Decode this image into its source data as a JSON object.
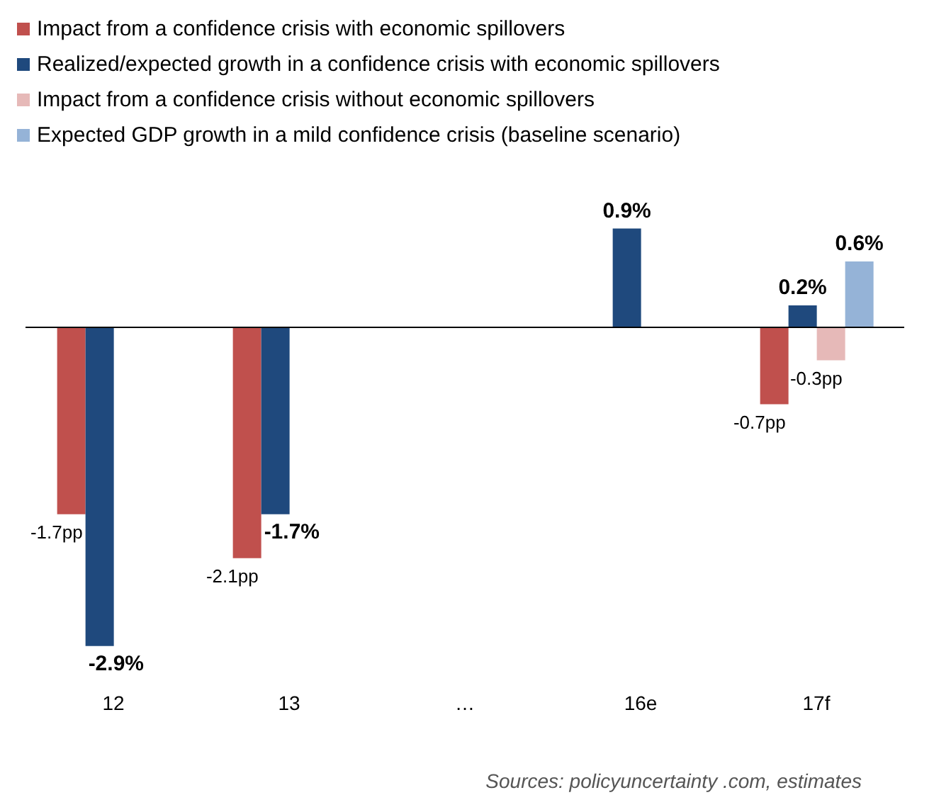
{
  "chart_data": {
    "type": "bar",
    "categories": [
      "12",
      "13",
      "…",
      "16e",
      "17f"
    ],
    "series": [
      {
        "name": "Impact from a confidence crisis with economic spillovers",
        "color": "#c0504d",
        "values": [
          -1.7,
          -2.1,
          null,
          null,
          -0.7
        ],
        "value_labels": [
          "-1.7pp",
          "-2.1pp",
          null,
          null,
          "-0.7pp"
        ]
      },
      {
        "name": "Realized/expected growth in a confidence crisis with economic spillovers",
        "color": "#1f497d",
        "values": [
          -2.9,
          -1.7,
          null,
          0.9,
          0.2
        ],
        "value_labels": [
          "-2.9%",
          "-1.7%",
          null,
          "0.9%",
          "0.2%"
        ]
      },
      {
        "name": "Impact from a confidence crisis without economic spillovers",
        "color": "#e6b9b8",
        "values": [
          null,
          null,
          null,
          null,
          -0.3
        ],
        "value_labels": [
          null,
          null,
          null,
          null,
          "-0.3pp"
        ]
      },
      {
        "name": "Expected GDP growth in a mild confidence crisis (baseline scenario)",
        "color": "#95b3d7",
        "values": [
          null,
          null,
          null,
          null,
          0.6
        ],
        "value_labels": [
          null,
          null,
          null,
          null,
          "0.6%"
        ]
      }
    ],
    "legend": "top",
    "grid": false,
    "annotations": [
      "Sources: policyuncertainty .com, estimates"
    ]
  }
}
